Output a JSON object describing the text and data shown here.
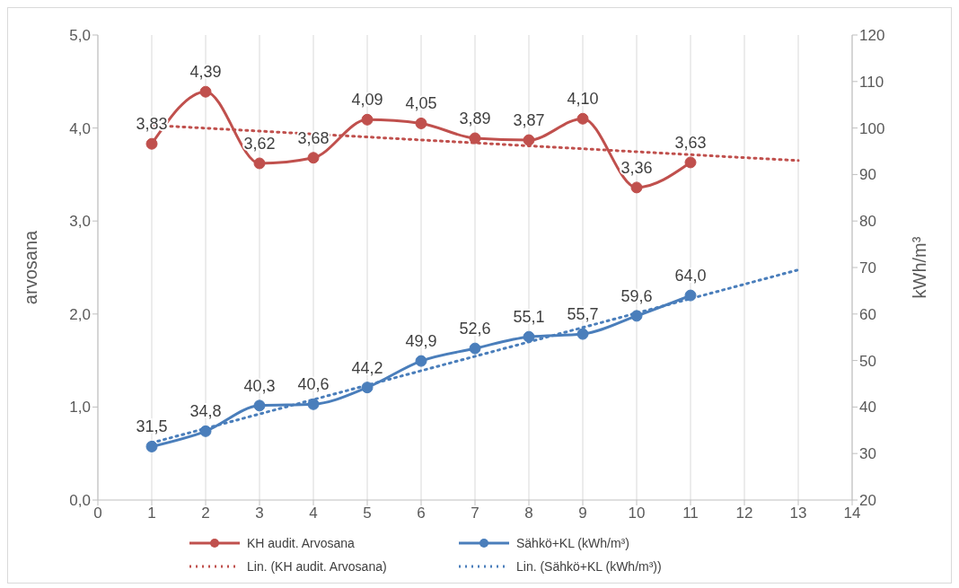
{
  "chart_data": {
    "type": "line",
    "ylabel": "arvosana",
    "y2label": "kWh/m³",
    "xlim": [
      0,
      14
    ],
    "xticks": [
      0,
      1,
      2,
      3,
      4,
      5,
      6,
      7,
      8,
      9,
      10,
      11,
      12,
      13,
      14
    ],
    "ylim": [
      0,
      5
    ],
    "yticks": [
      {
        "value": 0,
        "label": "0,0"
      },
      {
        "value": 1,
        "label": "1,0"
      },
      {
        "value": 2,
        "label": "2,0"
      },
      {
        "value": 3,
        "label": "3,0"
      },
      {
        "value": 4,
        "label": "4,0"
      },
      {
        "value": 5,
        "label": "5,0"
      }
    ],
    "y2lim": [
      20,
      120
    ],
    "y2ticks": [
      20,
      30,
      40,
      50,
      60,
      70,
      80,
      90,
      100,
      110,
      120
    ],
    "grid": "x",
    "legend": "bottom",
    "marker": "circle",
    "line_style": "solid",
    "series": [
      {
        "name": "KH audit. Arvosana",
        "color": "#c0504d",
        "x": [
          1,
          2,
          3,
          4,
          5,
          6,
          7,
          8,
          9,
          10,
          11
        ],
        "values": [
          3.83,
          4.39,
          3.62,
          3.68,
          4.09,
          4.05,
          3.89,
          3.87,
          4.1,
          3.36,
          3.63
        ],
        "value_labels": [
          "3,83",
          "4,39",
          "3,62",
          "3,68",
          "4,09",
          "4,05",
          "3,89",
          "3,87",
          "4,10",
          "3,36",
          "3,63"
        ]
      },
      {
        "name": "Sähkö+KL (kWh/m³)",
        "color": "#4a7ebb",
        "axis": "y2",
        "x": [
          1,
          2,
          3,
          4,
          5,
          6,
          7,
          8,
          9,
          10,
          11
        ],
        "values": [
          31.5,
          34.8,
          40.3,
          40.6,
          44.2,
          49.9,
          52.6,
          55.1,
          55.7,
          59.6,
          64.0
        ],
        "value_labels": [
          "31,5",
          "34,8",
          "40,3",
          "40,6",
          "44,2",
          "49,9",
          "52,6",
          "55,1",
          "55,7",
          "59,6",
          "64,0"
        ]
      },
      {
        "name": "Lin. (KH audit. Arvosana)",
        "color": "#c0504d",
        "x": [
          1,
          13
        ],
        "values": [
          4.03,
          3.65
        ],
        "line_style": "dotted",
        "marker": "none"
      },
      {
        "name": "Lin. (Sähkö+KL (kWh/m³))",
        "color": "#4a7ebb",
        "axis": "y2",
        "x": [
          1,
          13
        ],
        "values": [
          32.3,
          69.5
        ],
        "line_style": "dotted",
        "marker": "none"
      }
    ]
  }
}
